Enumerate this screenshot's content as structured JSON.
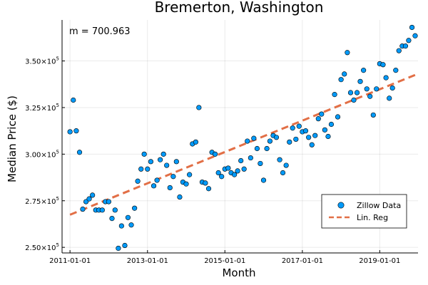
{
  "chart_data": {
    "type": "scatter",
    "title": "Bremerton, Washington",
    "xlabel": "Month",
    "ylabel": "Median Price ($)",
    "annotation": "m = 700.963",
    "grid": true,
    "legend_placement": "bottom-right",
    "colors": {
      "scatter": "#009AF9",
      "regression": "#E26F46"
    },
    "x_ticks": [
      {
        "date": "2011-01-01",
        "label": "2011-01-01"
      },
      {
        "date": "2013-01-01",
        "label": "2013-01-01"
      },
      {
        "date": "2015-01-01",
        "label": "2015-01-01"
      },
      {
        "date": "2017-01-01",
        "label": "2017-01-01"
      },
      {
        "date": "2019-01-01",
        "label": "2019-01-01"
      }
    ],
    "y_ticks": [
      {
        "value": 250000,
        "mantissa": "2.50×10",
        "exponent": "5"
      },
      {
        "value": 275000,
        "mantissa": "2.75×10",
        "exponent": "5"
      },
      {
        "value": 300000,
        "mantissa": "3.00×10",
        "exponent": "5"
      },
      {
        "value": 325000,
        "mantissa": "3.25×10",
        "exponent": "5"
      },
      {
        "value": 350000,
        "mantissa": "3.50×10",
        "exponent": "5"
      }
    ],
    "xlim": [
      "2010-10-18",
      "2019-12-28"
    ],
    "ylim": [
      247000,
      372000
    ],
    "series": [
      {
        "name": "Zillow Data",
        "kind": "scatter",
        "points": [
          [
            "2011-01-01",
            312000
          ],
          [
            "2011-02-01",
            329000
          ],
          [
            "2011-03-01",
            312500
          ],
          [
            "2011-04-01",
            301000
          ],
          [
            "2011-05-01",
            270500
          ],
          [
            "2011-06-01",
            274500
          ],
          [
            "2011-07-01",
            276000
          ],
          [
            "2011-08-01",
            278000
          ],
          [
            "2011-09-01",
            270000
          ],
          [
            "2011-10-01",
            270000
          ],
          [
            "2011-11-01",
            270000
          ],
          [
            "2011-12-01",
            274500
          ],
          [
            "2012-01-01",
            274500
          ],
          [
            "2012-02-01",
            265500
          ],
          [
            "2012-03-01",
            270000
          ],
          [
            "2012-04-01",
            249500
          ],
          [
            "2012-05-01",
            261500
          ],
          [
            "2012-06-01",
            251000
          ],
          [
            "2012-07-01",
            266000
          ],
          [
            "2012-08-01",
            262000
          ],
          [
            "2012-09-01",
            271000
          ],
          [
            "2012-10-01",
            285500
          ],
          [
            "2012-11-01",
            292000
          ],
          [
            "2012-12-01",
            300000
          ],
          [
            "2013-01-01",
            292000
          ],
          [
            "2013-02-01",
            296000
          ],
          [
            "2013-03-01",
            283000
          ],
          [
            "2013-04-01",
            286000
          ],
          [
            "2013-05-01",
            297000
          ],
          [
            "2013-06-01",
            300000
          ],
          [
            "2013-07-01",
            294000
          ],
          [
            "2013-08-01",
            282000
          ],
          [
            "2013-09-01",
            288000
          ],
          [
            "2013-10-01",
            296000
          ],
          [
            "2013-11-01",
            277000
          ],
          [
            "2013-12-01",
            285000
          ],
          [
            "2014-01-01",
            284000
          ],
          [
            "2014-02-01",
            289000
          ],
          [
            "2014-03-01",
            305500
          ],
          [
            "2014-04-01",
            306500
          ],
          [
            "2014-05-01",
            325000
          ],
          [
            "2014-06-01",
            285000
          ],
          [
            "2014-07-01",
            284500
          ],
          [
            "2014-08-01",
            281500
          ],
          [
            "2014-09-01",
            301000
          ],
          [
            "2014-10-01",
            300000
          ],
          [
            "2014-11-01",
            290000
          ],
          [
            "2014-12-01",
            288000
          ],
          [
            "2015-01-01",
            292000
          ],
          [
            "2015-02-01",
            292500
          ],
          [
            "2015-03-01",
            290000
          ],
          [
            "2015-04-01",
            289000
          ],
          [
            "2015-05-01",
            291000
          ],
          [
            "2015-06-01",
            296500
          ],
          [
            "2015-07-01",
            292000
          ],
          [
            "2015-08-01",
            307000
          ],
          [
            "2015-09-01",
            298000
          ],
          [
            "2015-10-01",
            308500
          ],
          [
            "2015-11-01",
            303000
          ],
          [
            "2015-12-01",
            295000
          ],
          [
            "2016-01-01",
            286000
          ],
          [
            "2016-02-01",
            303000
          ],
          [
            "2016-03-01",
            307000
          ],
          [
            "2016-04-01",
            310000
          ],
          [
            "2016-05-01",
            309000
          ],
          [
            "2016-06-01",
            297000
          ],
          [
            "2016-07-01",
            290000
          ],
          [
            "2016-08-01",
            294000
          ],
          [
            "2016-09-01",
            306500
          ],
          [
            "2016-10-01",
            314000
          ],
          [
            "2016-11-01",
            308000
          ],
          [
            "2016-12-01",
            315000
          ],
          [
            "2017-01-01",
            312000
          ],
          [
            "2017-02-01",
            312500
          ],
          [
            "2017-03-01",
            309000
          ],
          [
            "2017-04-01",
            305000
          ],
          [
            "2017-05-01",
            310000
          ],
          [
            "2017-06-01",
            319000
          ],
          [
            "2017-07-01",
            321500
          ],
          [
            "2017-08-01",
            313000
          ],
          [
            "2017-09-01",
            309500
          ],
          [
            "2017-10-01",
            316000
          ],
          [
            "2017-11-01",
            332000
          ],
          [
            "2017-12-01",
            320000
          ],
          [
            "2018-01-01",
            340000
          ],
          [
            "2018-02-01",
            343000
          ],
          [
            "2018-03-01",
            354500
          ],
          [
            "2018-04-01",
            333000
          ],
          [
            "2018-05-01",
            329000
          ],
          [
            "2018-06-01",
            333000
          ],
          [
            "2018-07-01",
            339000
          ],
          [
            "2018-08-01",
            345000
          ],
          [
            "2018-09-01",
            335000
          ],
          [
            "2018-10-01",
            331000
          ],
          [
            "2018-11-01",
            321000
          ],
          [
            "2018-12-01",
            335000
          ],
          [
            "2019-01-01",
            348500
          ],
          [
            "2019-02-01",
            348000
          ],
          [
            "2019-03-01",
            341000
          ],
          [
            "2019-04-01",
            330000
          ],
          [
            "2019-05-01",
            335500
          ],
          [
            "2019-06-01",
            345000
          ],
          [
            "2019-07-01",
            355500
          ],
          [
            "2019-08-01",
            358000
          ],
          [
            "2019-09-01",
            358000
          ],
          [
            "2019-10-01",
            361000
          ],
          [
            "2019-11-01",
            368000
          ],
          [
            "2019-12-01",
            363500
          ]
        ]
      },
      {
        "name": "Lin. Reg",
        "kind": "line",
        "dash": "dashed",
        "points": [
          [
            "2011-01-01",
            267500
          ],
          [
            "2019-12-01",
            342500
          ]
        ]
      }
    ]
  }
}
